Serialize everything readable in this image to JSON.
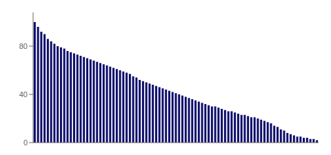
{
  "chart_data": {
    "type": "bar",
    "categories": [
      null,
      null,
      null,
      null,
      null,
      null,
      null,
      null,
      null,
      null,
      null,
      null,
      null,
      null,
      null,
      null,
      null,
      null,
      null,
      null,
      null,
      null,
      null,
      null,
      null,
      null,
      null,
      null,
      null,
      null,
      null,
      null,
      null,
      null,
      null,
      null,
      null,
      null,
      null,
      null,
      null,
      null,
      null,
      null,
      null,
      null,
      null,
      null,
      null,
      null,
      null,
      null,
      null,
      null,
      null,
      null,
      null,
      null,
      null,
      null,
      null,
      null,
      null,
      null,
      null,
      null,
      null,
      null,
      null,
      null,
      null,
      null,
      null,
      null,
      null,
      null,
      null,
      null,
      null,
      null,
      null,
      null,
      null,
      null,
      null,
      null,
      null
    ],
    "values": [
      100,
      96,
      92,
      90,
      86,
      84,
      82,
      80,
      79,
      78,
      76,
      75,
      74,
      73,
      72,
      71,
      70,
      69,
      68,
      67,
      66,
      65,
      64,
      63,
      62,
      61,
      60,
      59,
      58,
      57,
      55,
      54,
      52,
      51,
      50,
      49,
      48,
      47,
      46,
      45,
      44,
      43,
      42,
      41,
      40,
      39,
      38,
      37,
      36,
      35,
      34,
      33,
      32,
      31,
      30,
      30,
      29,
      28,
      27,
      26,
      26,
      25,
      24,
      23,
      23,
      22,
      21,
      21,
      20,
      19,
      18,
      17,
      16,
      14,
      13,
      11,
      10,
      8,
      7,
      6,
      5,
      5,
      4,
      4,
      3,
      3,
      2
    ],
    "color": "#0d0d6b",
    "ylim": [
      0,
      108
    ],
    "yticks": [
      0,
      40,
      80
    ],
    "grid": false,
    "tick_labels": "y"
  }
}
